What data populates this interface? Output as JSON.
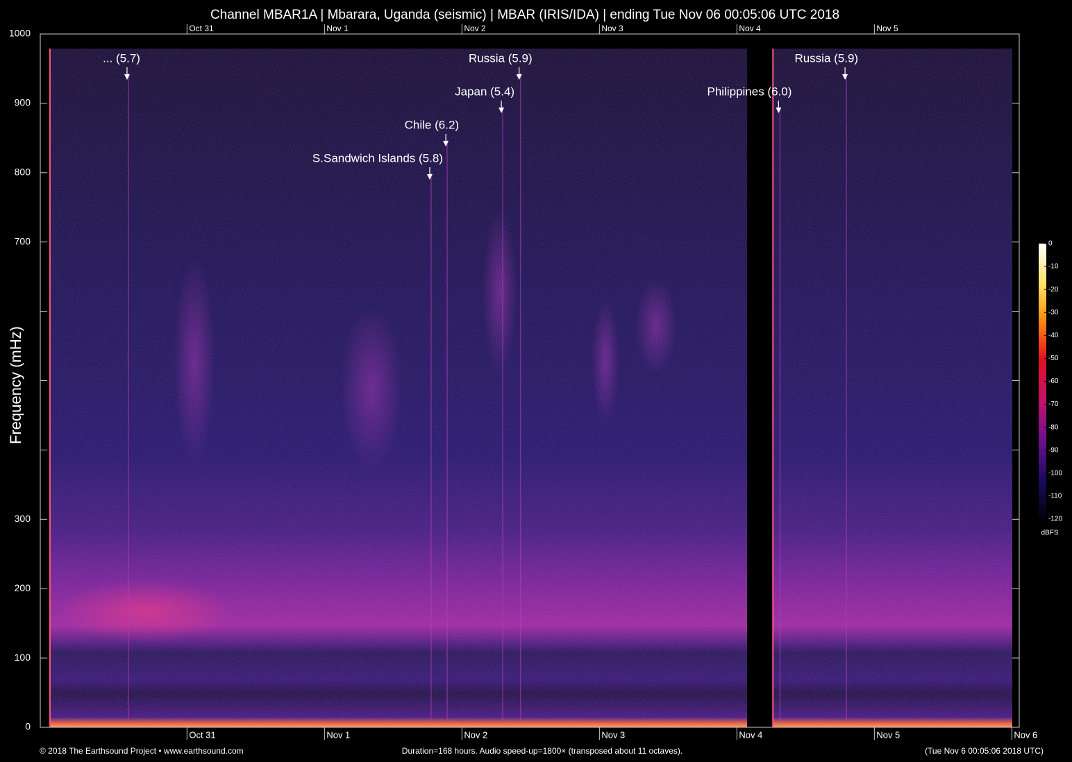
{
  "chart_data": {
    "type": "spectrogram",
    "title": "Channel MBAR1A | Mbarara, Uganda (seismic) | MBAR (IRIS/IDA) | ending Tue Nov 06 00:05:06 UTC 2018",
    "y_label": "Frequency (mHz)",
    "ylim": [
      0,
      1000
    ],
    "yticks": [
      0,
      100,
      200,
      300,
      {
        "value": 400,
        "label": null
      },
      {
        "value": 500,
        "label": null
      },
      {
        "value": 600,
        "label": null
      },
      700,
      800,
      900,
      1000
    ],
    "xlim": [
      0,
      168
    ],
    "xticks": [
      {
        "value": 23.92,
        "label": "Oct 31"
      },
      {
        "value": 47.92,
        "label": "Nov  1"
      },
      {
        "value": 71.92,
        "label": "Nov  2"
      },
      {
        "value": 95.92,
        "label": "Nov  3"
      },
      {
        "value": 119.92,
        "label": "Nov  4"
      },
      {
        "value": 143.92,
        "label": "Nov  5"
      },
      {
        "value": 167.92,
        "label": "Nov  6"
      }
    ],
    "gaps": [
      [
        121.7,
        126.1
      ]
    ],
    "annotations": [
      {
        "text": "... (5.7)",
        "x": 13.45
      },
      {
        "text": "S.Sandwich Islands (5.8)",
        "x": 66.3
      },
      {
        "text": "Chile (6.2)",
        "x": 69.1
      },
      {
        "text": "Japan (5.4)",
        "x": 78.8
      },
      {
        "text": "Russia (5.9)",
        "x": 81.9
      },
      {
        "text": "Philippines (6.0)",
        "x": 127.2
      },
      {
        "text": "Russia (5.9)",
        "x": 138.8
      }
    ],
    "colorbar": {
      "label": "dBFS",
      "lim": [
        -120,
        0
      ],
      "ticks": [
        0,
        -10,
        -20,
        -30,
        -40,
        -50,
        -60,
        -70,
        -80,
        -90,
        -100,
        -110,
        -120
      ]
    },
    "footer": {
      "left": "© 2018 The Earthsound Project • www.earthsound.com",
      "center": "Duration=168 hours. Audio speed-up=1800× (transposed about 11 octaves).",
      "right": "(Tue Nov  6 00:05:06 2018 UTC)"
    }
  }
}
